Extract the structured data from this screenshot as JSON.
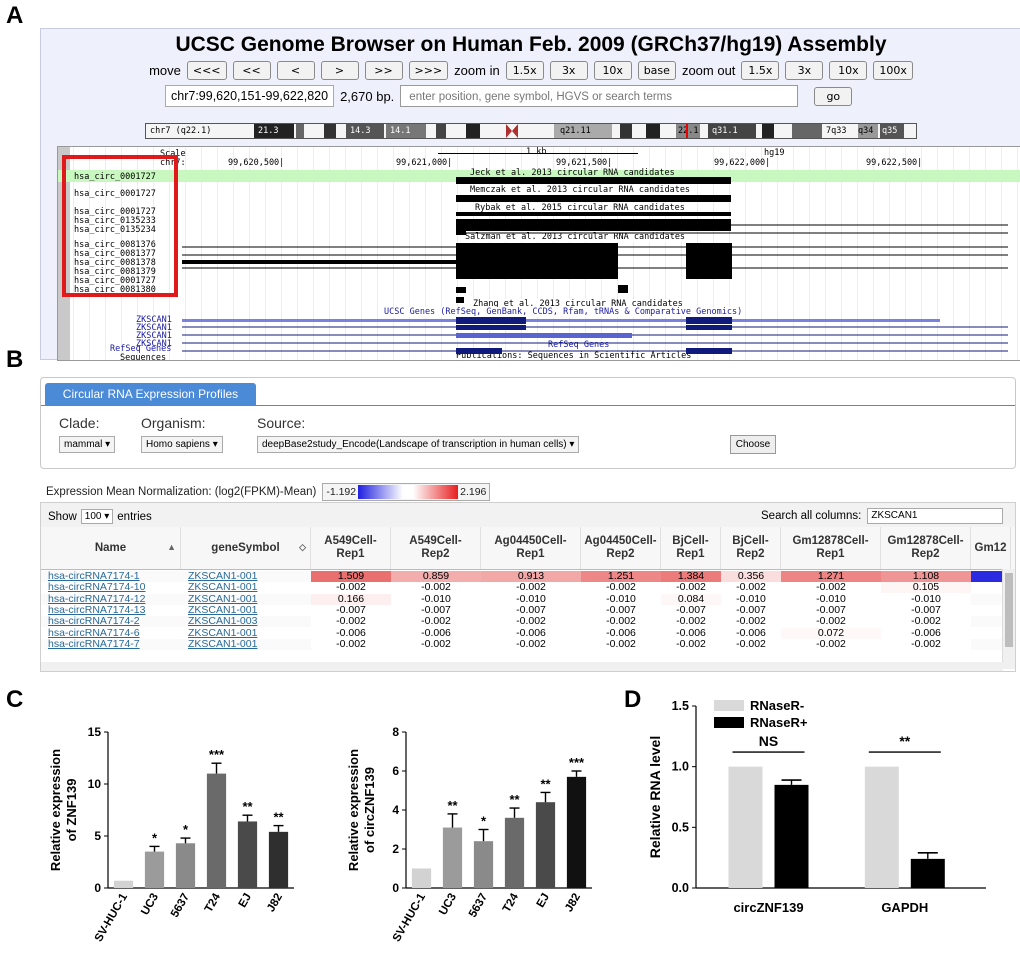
{
  "panel_letters": {
    "a": "A",
    "b": "B",
    "c": "C",
    "d": "D"
  },
  "ucsc": {
    "title": "UCSC Genome Browser on Human Feb. 2009 (GRCh37/hg19) Assembly",
    "move_label": "move",
    "move_buttons": [
      "<<<",
      "<<",
      "<",
      ">",
      ">>",
      ">>>"
    ],
    "zoom_in_label": "zoom in",
    "zoom_in_buttons": [
      "1.5x",
      "3x",
      "10x",
      "base"
    ],
    "zoom_out_label": "zoom out",
    "zoom_out_buttons": [
      "1.5x",
      "3x",
      "10x",
      "100x"
    ],
    "position": "chr7:99,620,151-99,622,820",
    "size": "2,670 bp.",
    "search_placeholder": "enter position, gene symbol, HGVS or search terms",
    "go_label": "go",
    "ideogram": {
      "chrom": "chr7 (q22.1)",
      "bands": [
        "21.3",
        "14.3",
        "14.1",
        "q21.11",
        "22.1",
        "q31.1",
        "7q33",
        "q34",
        "q35"
      ]
    },
    "scale": {
      "scale_label": "Scale",
      "chrom_label": "chr7:",
      "kb_label": "1 kb",
      "assembly": "hg19",
      "ticks": [
        "99,620,500|",
        "99,621,000|",
        "99,621,500|",
        "99,622,000|",
        "99,622,500|"
      ]
    },
    "track_titles": {
      "jeck": "Jeck et al. 2013 circular RNA candidates",
      "memczak": "Memczak et al. 2013 circular RNA candidates",
      "rybak": "Rybak et al. 2015 circular RNA candidates",
      "salzman": "Salzman et al. 2013 circular RNA candidates",
      "zhang": "Zhang et al. 2013 circular RNA candidates",
      "ucsc_genes": "UCSC Genes (RefSeq, GenBank, CCDS, Rfam, tRNAs & Comparative Genomics)",
      "refseq": "RefSeq Genes",
      "publications": "Publications: Sequences in Scientific Articles"
    },
    "circ_ids": [
      "hsa_circ_0001727",
      "hsa_circ_0001727",
      "hsa_circ_0001727",
      "hsa_circ_0135233",
      "hsa_circ_0135234",
      "hsa_circ_0081376",
      "hsa_circ_0081377",
      "hsa_circ_0081378",
      "hsa_circ_0081379",
      "hsa_circ_0001727",
      "hsa_circ_0081380"
    ],
    "gene_labels": [
      "ZKSCAN1",
      "ZKSCAN1",
      "ZKSCAN1",
      "ZKSCAN1"
    ],
    "refseq_label": "RefSeq Genes",
    "sequences_label": "Sequences"
  },
  "circ_profiles": {
    "tab_label": "Circular RNA Expression Profiles",
    "clade_label": "Clade:",
    "organism_label": "Organism:",
    "source_label": "Source:",
    "clade_value": "mammal",
    "organism_value": "Homo sapiens",
    "source_value": "deepBase2study_Encode(Landscape of transcription in human cells)",
    "choose_label": "Choose",
    "norm_label": "Expression Mean Normalization: (log2(FPKM)-Mean)",
    "scale_min": "-1.192",
    "scale_max": "2.196"
  },
  "table": {
    "show_label": "Show",
    "show_value": "100",
    "entries_label": "entries",
    "search_label": "Search all columns:",
    "search_value": "ZKSCAN1",
    "headers": [
      "Name",
      "geneSymbol",
      "A549Cell-\nRep1",
      "A549Cell-\nRep2",
      "Ag04450Cell-\nRep1",
      "Ag04450Cell-\nRep2",
      "BjCell-\nRep1",
      "BjCell-\nRep2",
      "Gm12878Cell-\nRep1",
      "Gm12878Cell-\nRep2",
      "Gm12"
    ],
    "rows": [
      {
        "name": "hsa-circRNA7174-1",
        "gene": "ZKSCAN1-001",
        "vals": [
          "1.509",
          "0.859",
          "0.913",
          "1.251",
          "1.384",
          "0.356",
          "1.271",
          "1.108"
        ]
      },
      {
        "name": "hsa-circRNA7174-10",
        "gene": "ZKSCAN1-001",
        "vals": [
          "-0.002",
          "-0.002",
          "-0.002",
          "-0.002",
          "-0.002",
          "-0.002",
          "-0.002",
          "0.105"
        ]
      },
      {
        "name": "hsa-circRNA7174-12",
        "gene": "ZKSCAN1-001",
        "vals": [
          "0.166",
          "-0.010",
          "-0.010",
          "-0.010",
          "0.084",
          "-0.010",
          "-0.010",
          "-0.010"
        ]
      },
      {
        "name": "hsa-circRNA7174-13",
        "gene": "ZKSCAN1-001",
        "vals": [
          "-0.007",
          "-0.007",
          "-0.007",
          "-0.007",
          "-0.007",
          "-0.007",
          "-0.007",
          "-0.007"
        ]
      },
      {
        "name": "hsa-circRNA7174-2",
        "gene": "ZKSCAN1-003",
        "vals": [
          "-0.002",
          "-0.002",
          "-0.002",
          "-0.002",
          "-0.002",
          "-0.002",
          "-0.002",
          "-0.002"
        ]
      },
      {
        "name": "hsa-circRNA7174-6",
        "gene": "ZKSCAN1-001",
        "vals": [
          "-0.006",
          "-0.006",
          "-0.006",
          "-0.006",
          "-0.006",
          "-0.006",
          "0.072",
          "-0.006"
        ]
      },
      {
        "name": "hsa-circRNA7174-7",
        "gene": "ZKSCAN1-001",
        "vals": [
          "-0.002",
          "-0.002",
          "-0.002",
          "-0.002",
          "-0.002",
          "-0.002",
          "-0.002",
          "-0.002"
        ]
      }
    ]
  },
  "colors": {
    "accent_tab": "#4a8ad6",
    "highlight_red": "#e01a1a",
    "hl_green": "#c8f7c0",
    "track_navy": "#0f1a7a"
  },
  "chart_data": [
    {
      "type": "bar",
      "panel": "C",
      "ylabel": "Relative expression\nof ZNF139",
      "categories": [
        "SV-HUC-1",
        "UC3",
        "5637",
        "T24",
        "EJ",
        "J82"
      ],
      "values": [
        0.7,
        3.5,
        4.3,
        11.0,
        6.4,
        5.4
      ],
      "errors": [
        0,
        0.5,
        0.5,
        1.0,
        0.6,
        0.6
      ],
      "significance": [
        "",
        "*",
        "*",
        "***",
        "**",
        "**"
      ],
      "fills": [
        "#d2d2d2",
        "#9b9b9b",
        "#8a8a8a",
        "#6a6a6a",
        "#4a4a4a",
        "#2f2f2f"
      ],
      "ylim": [
        0,
        15
      ],
      "yticks": [
        0,
        5,
        10,
        15
      ]
    },
    {
      "type": "bar",
      "panel": "C",
      "ylabel": "Relative expression\nof circZNF139",
      "categories": [
        "SV-HUC-1",
        "UC3",
        "5637",
        "T24",
        "EJ",
        "J82"
      ],
      "values": [
        1.0,
        3.1,
        2.4,
        3.6,
        4.4,
        5.7
      ],
      "errors": [
        0,
        0.7,
        0.6,
        0.5,
        0.5,
        0.3
      ],
      "significance": [
        "",
        "**",
        "*",
        "**",
        "**",
        "***"
      ],
      "fills": [
        "#d2d2d2",
        "#9b9b9b",
        "#8a8a8a",
        "#6a6a6a",
        "#4a4a4a",
        "#111111"
      ],
      "ylim": [
        0,
        8
      ],
      "yticks": [
        0,
        2,
        4,
        6,
        8
      ]
    },
    {
      "type": "bar",
      "panel": "D",
      "ylabel": "Relative RNA level",
      "categories": [
        "circZNF139",
        "GAPDH"
      ],
      "series": [
        {
          "name": "RNaseR-",
          "values": [
            1.0,
            1.0
          ],
          "errors": [
            0,
            0
          ],
          "color": "#d9d9d9"
        },
        {
          "name": "RNaseR+",
          "values": [
            0.85,
            0.24
          ],
          "errors": [
            0.04,
            0.05
          ],
          "color": "#000000"
        }
      ],
      "significance": [
        "NS",
        "**"
      ],
      "ylim": [
        0,
        1.5
      ],
      "yticks": [
        "0.0",
        "0.5",
        "1.0",
        "1.5"
      ],
      "legend": "top-left"
    }
  ]
}
